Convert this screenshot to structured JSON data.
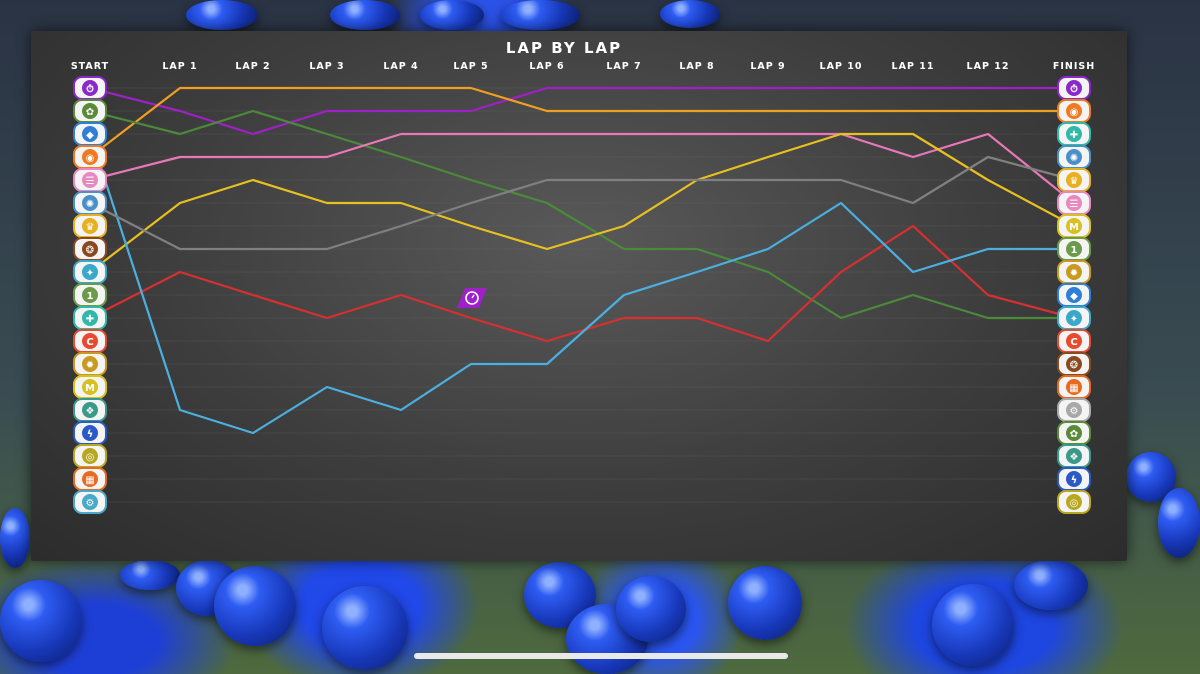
{
  "chart_data": {
    "type": "line",
    "title": "LAP BY LAP",
    "categories": [
      "START",
      "LAP 1",
      "LAP 2",
      "LAP 3",
      "LAP 4",
      "LAP 5",
      "LAP 6",
      "LAP 7",
      "LAP 8",
      "LAP 9",
      "LAP 10",
      "LAP 11",
      "LAP 12",
      "FINISH"
    ],
    "ylim": [
      1,
      20
    ],
    "y_inverted": true,
    "grid": true,
    "legend": "team logos at start and finish columns",
    "series": [
      {
        "color": "#a020c8",
        "values": [
          1,
          2,
          3,
          2,
          2,
          2,
          1,
          1,
          1,
          1,
          1,
          1,
          1,
          1
        ]
      },
      {
        "color": "#f0a020",
        "values": [
          4,
          1,
          1,
          1,
          1,
          1,
          2,
          2,
          2,
          2,
          2,
          2,
          2,
          2
        ]
      },
      {
        "color": "#4a8a3a",
        "values": [
          2,
          3,
          2,
          3,
          4,
          5,
          6,
          8,
          8,
          9,
          11,
          10,
          11,
          11
        ]
      },
      {
        "color": "#e878b8",
        "values": [
          5,
          4,
          4,
          4,
          3,
          3,
          3,
          3,
          3,
          3,
          3,
          4,
          3,
          6
        ]
      },
      {
        "color": "#e8c020",
        "values": [
          9,
          6,
          5,
          6,
          6,
          7,
          8,
          7,
          5,
          4,
          3,
          3,
          5,
          7
        ]
      },
      {
        "color": "#d83030",
        "values": [
          11,
          9,
          10,
          11,
          10,
          11,
          12,
          11,
          11,
          12,
          9,
          7,
          10,
          11
        ]
      },
      {
        "color": "#4ab0e0",
        "values": [
          3,
          15,
          16,
          14,
          15,
          13,
          13,
          10,
          9,
          8,
          6,
          9,
          8,
          8
        ]
      },
      {
        "color": "#808080",
        "values": [
          6,
          8,
          8,
          8,
          7,
          6,
          5,
          5,
          5,
          5,
          5,
          6,
          4,
          5
        ]
      }
    ]
  },
  "logos": {
    "start": [
      {
        "color": "#8a28c8",
        "glyph": "⏱"
      },
      {
        "color": "#5a8a3a",
        "glyph": "✿"
      },
      {
        "color": "#2f7fd8",
        "glyph": "◆"
      },
      {
        "color": "#f07a20",
        "glyph": "◉"
      },
      {
        "color": "#e888c0",
        "glyph": "☰"
      },
      {
        "color": "#4a90c8",
        "glyph": "✺"
      },
      {
        "color": "#e8b020",
        "glyph": "♛"
      },
      {
        "color": "#8a4a20",
        "glyph": "❂"
      },
      {
        "color": "#3aa8c8",
        "glyph": "✦"
      },
      {
        "color": "#6a9a4a",
        "glyph": "1"
      },
      {
        "color": "#30b8a8",
        "glyph": "✚"
      },
      {
        "color": "#e84a30",
        "glyph": "C"
      },
      {
        "color": "#c89a20",
        "glyph": "✹"
      },
      {
        "color": "#d8c020",
        "glyph": "M"
      },
      {
        "color": "#3a9a8a",
        "glyph": "❖"
      },
      {
        "color": "#2a5ac8",
        "glyph": "ϟ"
      },
      {
        "color": "#b8a820",
        "glyph": "◎"
      },
      {
        "color": "#e86a20",
        "glyph": "▦"
      },
      {
        "color": "#4aa8c8",
        "glyph": "⚙"
      }
    ],
    "finish": [
      {
        "color": "#8a28c8",
        "glyph": "⏱"
      },
      {
        "color": "#f07a20",
        "glyph": "◉"
      },
      {
        "color": "#30b8a8",
        "glyph": "✚"
      },
      {
        "color": "#4a90c8",
        "glyph": "✺"
      },
      {
        "color": "#e8b020",
        "glyph": "♛"
      },
      {
        "color": "#e888c0",
        "glyph": "☰"
      },
      {
        "color": "#d8c020",
        "glyph": "M"
      },
      {
        "color": "#6a9a4a",
        "glyph": "1"
      },
      {
        "color": "#c89a20",
        "glyph": "✹"
      },
      {
        "color": "#2f7fd8",
        "glyph": "◆"
      },
      {
        "color": "#3aa8c8",
        "glyph": "✦"
      },
      {
        "color": "#e84a30",
        "glyph": "C"
      },
      {
        "color": "#8a4a20",
        "glyph": "❂"
      },
      {
        "color": "#e86a20",
        "glyph": "▦"
      },
      {
        "color": "#a8a8a8",
        "glyph": "⚙"
      },
      {
        "color": "#5a8a3a",
        "glyph": "✿"
      },
      {
        "color": "#3a9a8a",
        "glyph": "❖"
      },
      {
        "color": "#2a5ac8",
        "glyph": "ϟ"
      },
      {
        "color": "#b8a820",
        "glyph": "◎"
      }
    ]
  },
  "badge": {
    "color": "#a020c8",
    "glyph": "⏱"
  }
}
